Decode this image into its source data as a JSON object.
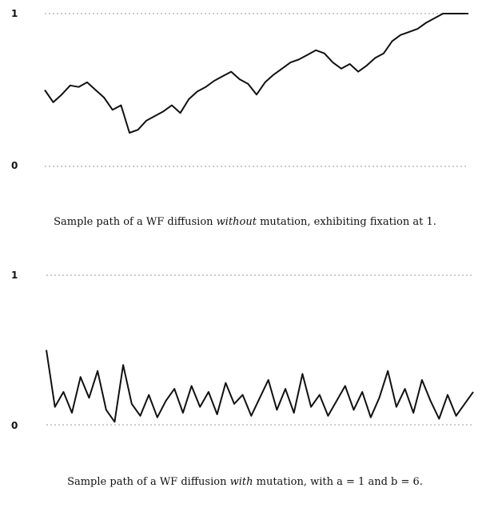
{
  "chart_data": [
    {
      "type": "line",
      "ylim": [
        0,
        1
      ],
      "xlim": [
        0,
        1
      ],
      "grid": false,
      "y_ticks": [
        "1",
        "0"
      ],
      "reference_lines": [
        0,
        1
      ],
      "caption": {
        "before": "Sample path of a WF diffusion ",
        "emphasis": "without",
        "after": " mutation, exhibiting fixation at 1."
      },
      "series": [
        {
          "x": [
            0,
            0.02,
            0.04,
            0.06,
            0.08,
            0.1,
            0.12,
            0.14,
            0.16,
            0.18,
            0.2,
            0.22,
            0.24,
            0.26,
            0.28,
            0.3,
            0.32,
            0.34,
            0.36,
            0.38,
            0.4,
            0.42,
            0.44,
            0.46,
            0.48,
            0.5,
            0.52,
            0.54,
            0.56,
            0.58,
            0.6,
            0.62,
            0.64,
            0.66,
            0.68,
            0.7,
            0.72,
            0.74,
            0.76,
            0.78,
            0.8,
            0.82,
            0.84,
            0.86,
            0.88,
            0.9,
            0.92,
            0.94,
            0.96,
            0.98,
            1.0
          ],
          "y": [
            0.5,
            0.42,
            0.47,
            0.53,
            0.52,
            0.55,
            0.5,
            0.45,
            0.37,
            0.4,
            0.22,
            0.24,
            0.3,
            0.33,
            0.36,
            0.4,
            0.35,
            0.44,
            0.49,
            0.52,
            0.56,
            0.59,
            0.62,
            0.57,
            0.54,
            0.47,
            0.55,
            0.6,
            0.64,
            0.68,
            0.7,
            0.73,
            0.76,
            0.74,
            0.68,
            0.64,
            0.67,
            0.62,
            0.66,
            0.71,
            0.74,
            0.82,
            0.86,
            0.88,
            0.9,
            0.94,
            0.97,
            1.0,
            1.0,
            1.0,
            1.0
          ]
        }
      ]
    },
    {
      "type": "line",
      "ylim": [
        0,
        1
      ],
      "xlim": [
        0,
        1
      ],
      "grid": false,
      "y_ticks": [
        "1",
        "0"
      ],
      "reference_lines": [
        0,
        1
      ],
      "caption": {
        "before": "Sample path of a WF diffusion ",
        "emphasis": "with",
        "after": " mutation, with a = 1 and b = 6."
      },
      "series": [
        {
          "x": [
            0,
            0.02,
            0.04,
            0.06,
            0.08,
            0.1,
            0.12,
            0.14,
            0.16,
            0.18,
            0.2,
            0.22,
            0.24,
            0.26,
            0.28,
            0.3,
            0.32,
            0.34,
            0.36,
            0.38,
            0.4,
            0.42,
            0.44,
            0.46,
            0.48,
            0.5,
            0.52,
            0.54,
            0.56,
            0.58,
            0.6,
            0.62,
            0.64,
            0.66,
            0.68,
            0.7,
            0.72,
            0.74,
            0.76,
            0.78,
            0.8,
            0.82,
            0.84,
            0.86,
            0.88,
            0.9,
            0.92,
            0.94,
            0.96,
            0.98,
            1.0
          ],
          "y": [
            0.5,
            0.12,
            0.22,
            0.08,
            0.32,
            0.18,
            0.36,
            0.1,
            0.02,
            0.4,
            0.14,
            0.06,
            0.2,
            0.05,
            0.16,
            0.24,
            0.08,
            0.26,
            0.12,
            0.22,
            0.07,
            0.28,
            0.14,
            0.2,
            0.06,
            0.18,
            0.3,
            0.1,
            0.24,
            0.08,
            0.34,
            0.12,
            0.2,
            0.06,
            0.16,
            0.26,
            0.1,
            0.22,
            0.05,
            0.18,
            0.36,
            0.12,
            0.24,
            0.08,
            0.3,
            0.16,
            0.04,
            0.2,
            0.06,
            0.14,
            0.22
          ]
        }
      ]
    }
  ]
}
